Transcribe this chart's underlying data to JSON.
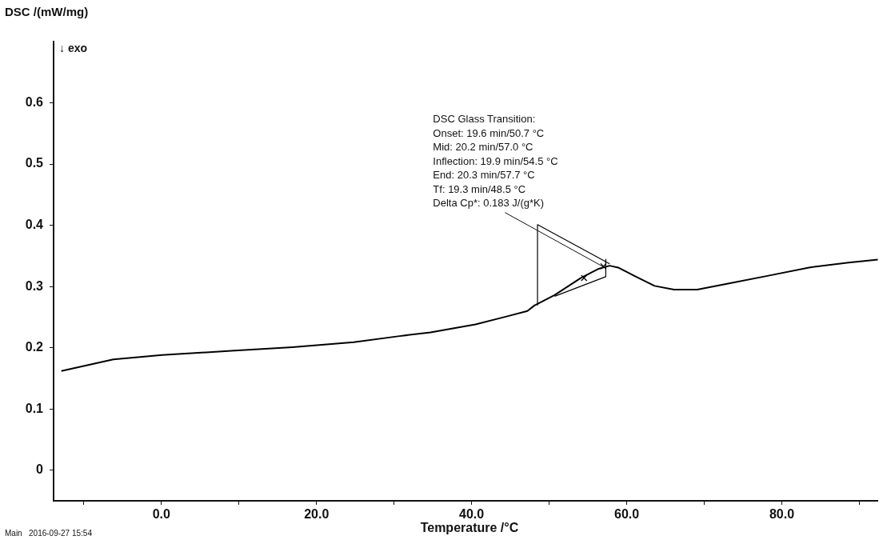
{
  "chart_data": {
    "type": "line",
    "xlabel": "Temperature /°C",
    "ylabel": "DSC /(mW/mg)",
    "xlim": [
      -13.9,
      92.4
    ],
    "ylim": [
      -0.05,
      0.7
    ],
    "xticks": [
      {
        "value": -10,
        "label": null
      },
      {
        "value": 0,
        "label": "0.0"
      },
      {
        "value": 10,
        "label": null
      },
      {
        "value": 20,
        "label": "20.0"
      },
      {
        "value": 30,
        "label": null
      },
      {
        "value": 40,
        "label": "40.0"
      },
      {
        "value": 50,
        "label": null
      },
      {
        "value": 60,
        "label": "60.0"
      },
      {
        "value": 70,
        "label": null
      },
      {
        "value": 80,
        "label": "80.0"
      },
      {
        "value": 90,
        "label": null
      }
    ],
    "yticks": [
      0,
      0.1,
      0.2,
      0.3,
      0.4,
      0.5,
      0.6
    ],
    "series": [
      {
        "color": "#000000",
        "x": [
          -12.9,
          -6.2,
          -3.6,
          0.1,
          9.0,
          16.9,
          24.8,
          30.7,
          34.7,
          40.5,
          44.5,
          47.2,
          48.1,
          50.7,
          54.1,
          56.4,
          57.8,
          58.9,
          61.2,
          63.6,
          66.1,
          69.1,
          73.2,
          78.4,
          83.5,
          88.6,
          92.4
        ],
        "values": [
          0.162,
          0.181,
          0.184,
          0.188,
          0.195,
          0.201,
          0.209,
          0.219,
          0.225,
          0.238,
          0.251,
          0.26,
          0.269,
          0.286,
          0.314,
          0.329,
          0.334,
          0.331,
          0.316,
          0.301,
          0.295,
          0.295,
          0.305,
          0.318,
          0.331,
          0.339,
          0.344
        ]
      },
      {
        "color": "#000000",
        "x": [
          48.5,
          48.5,
          57.8
        ],
        "values": [
          0.269,
          0.401,
          0.337
        ]
      },
      {
        "color": "#000000",
        "x": [
          50.7,
          57.3,
          57.3
        ],
        "values": [
          0.284,
          0.316,
          0.345
        ]
      },
      {
        "type": "scatter",
        "marker": "cross",
        "color": "#000000",
        "x": [
          54.5,
          57.0
        ],
        "values": [
          0.314,
          0.333
        ]
      }
    ],
    "annotations": [
      {
        "text": "DSC Glass Transition:\nOnset: 19.6 min/50.7 °C\nMid: 20.2 min/57.0 °C\nInflection: 19.9 min/54.5 °C\nEnd: 20.3 min/57.7 °C\nTf: 19.3 min/48.5 °C\nDelta Cp*: 0.183 J/(g*K)",
        "x": 57.3,
        "y": 0.33
      },
      "↓ exo",
      "Main   2016-09-27 15:54"
    ]
  }
}
